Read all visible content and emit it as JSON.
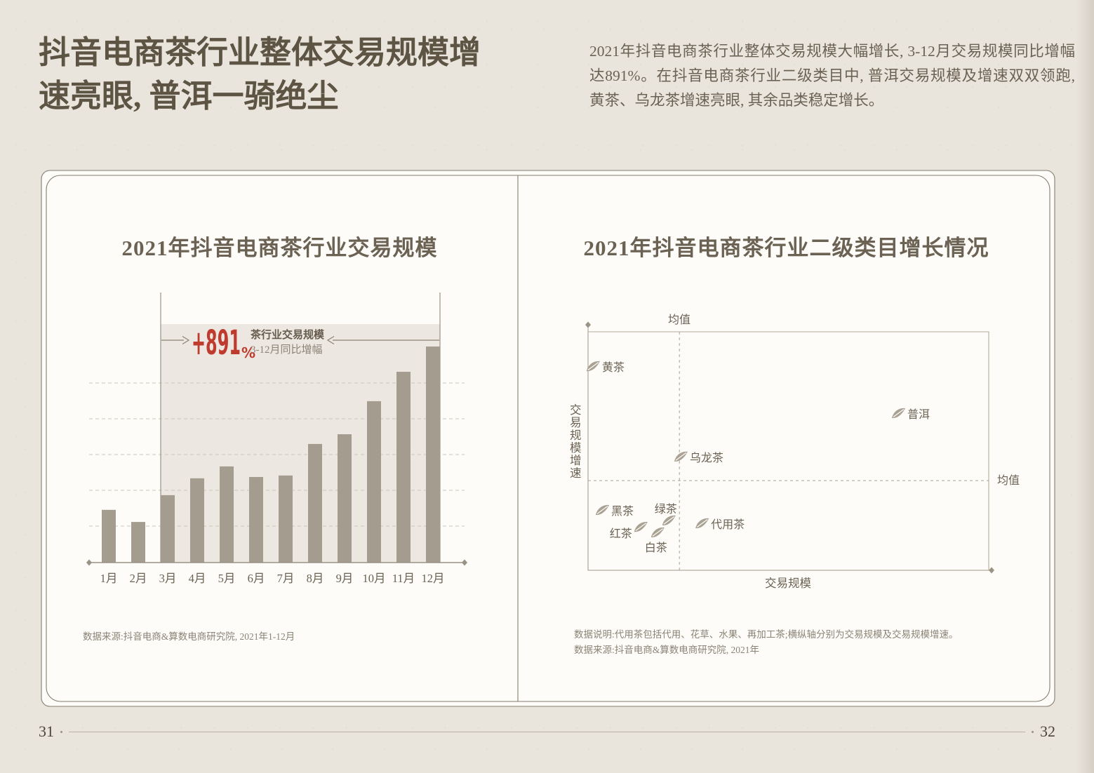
{
  "page": {
    "title_line1": "抖音电商茶行业整体交易规模增",
    "title_line2": "速亮眼, 普洱一骑绝尘",
    "intro": "2021年抖音电商茶行业整体交易规模大幅增长, 3-12月交易规模同比增幅达891%。在抖音电商茶行业二级类目中, 普洱交易规模及增速双双领跑, 黄茶、乌龙茶增速亮眼, 其余品类稳定增长。",
    "page_number_left": "31",
    "page_number_right": "32"
  },
  "colors": {
    "background": "#e9e4dc",
    "panel": "#fdfcf8",
    "frame_line": "#847d6f",
    "bar": "#a49c8e",
    "leaf": "#a9a193",
    "shade": "#ece7e1",
    "accent_red": "#bf3b2e",
    "text_dark": "#5d5444",
    "text_body": "#6b6254",
    "text_note": "#8b8376",
    "gridline": "#cac5bc",
    "axis": "#9a9284",
    "scatter_box": "#b2ab9e",
    "dash_mean": "#a9a29a"
  },
  "left_chart": {
    "title": "2021年抖音电商茶行业交易规模",
    "annotation": {
      "value": "+891",
      "percent": "%",
      "line1": "茶行业交易规模",
      "line2": "3-12月同比增幅"
    },
    "source": "数据来源:抖音电商&算数电商研究院, 2021年1-12月"
  },
  "right_chart": {
    "title": "2021年抖音电商茶行业二级类目增长情况",
    "mean_label": "均值",
    "xlabel": "交易规模",
    "ylabel": "交易规模增速",
    "note": "数据说明:代用茶包括代用、花草、水果、再加工茶;横纵轴分别为交易规模及交易规模增速。",
    "source": "数据来源:抖音电商&算数电商研究院, 2021年"
  },
  "chart_data": [
    {
      "type": "bar",
      "title": "2021年抖音电商茶行业交易规模",
      "categories": [
        "1月",
        "2月",
        "3月",
        "4月",
        "5月",
        "6月",
        "7月",
        "8月",
        "9月",
        "10月",
        "11月",
        "12月"
      ],
      "values": [
        24.4,
        18.8,
        31.2,
        39.0,
        44.5,
        39.6,
        40.3,
        54.9,
        59.4,
        74.7,
        88.3,
        100
      ],
      "values_unit": "relative transaction scale index, 12月 = 100 (no numeric axis labels shown)",
      "xlabel": "",
      "ylabel": "",
      "grid": "5 dashed horizontal gridlines, unlabeled",
      "highlight_range": "3月-12月",
      "highlight_annotation": "+891% 茶行业交易规模 3-12月同比增幅",
      "legend": "none"
    },
    {
      "type": "scatter",
      "title": "2021年抖音电商茶行业二级类目增长情况",
      "xlabel": "交易规模",
      "ylabel": "交易规模增速",
      "axes_unit": "relative position 0-100 (axes unlabeled, quadrant chart vs mean lines)",
      "mean_x": 22.8,
      "mean_y": 37.6,
      "points": [
        {
          "name": "黄茶",
          "x": 1.2,
          "y": 85.3,
          "label_pos": "right"
        },
        {
          "name": "普洱",
          "x": 77.4,
          "y": 65.6,
          "label_pos": "right"
        },
        {
          "name": "乌龙茶",
          "x": 23.1,
          "y": 47.4,
          "label_pos": "right"
        },
        {
          "name": "黑茶",
          "x": 3.5,
          "y": 25.0,
          "label_pos": "right"
        },
        {
          "name": "红茶",
          "x": 13.1,
          "y": 17.9,
          "label_pos": "left"
        },
        {
          "name": "绿茶",
          "x": 20.1,
          "y": 20.6,
          "label_pos": "above"
        },
        {
          "name": "白茶",
          "x": 17.3,
          "y": 15.6,
          "label_pos": "below"
        },
        {
          "name": "代用茶",
          "x": 28.4,
          "y": 19.4,
          "label_pos": "right"
        }
      ],
      "marker": "leaf icon",
      "legend": "none"
    }
  ]
}
